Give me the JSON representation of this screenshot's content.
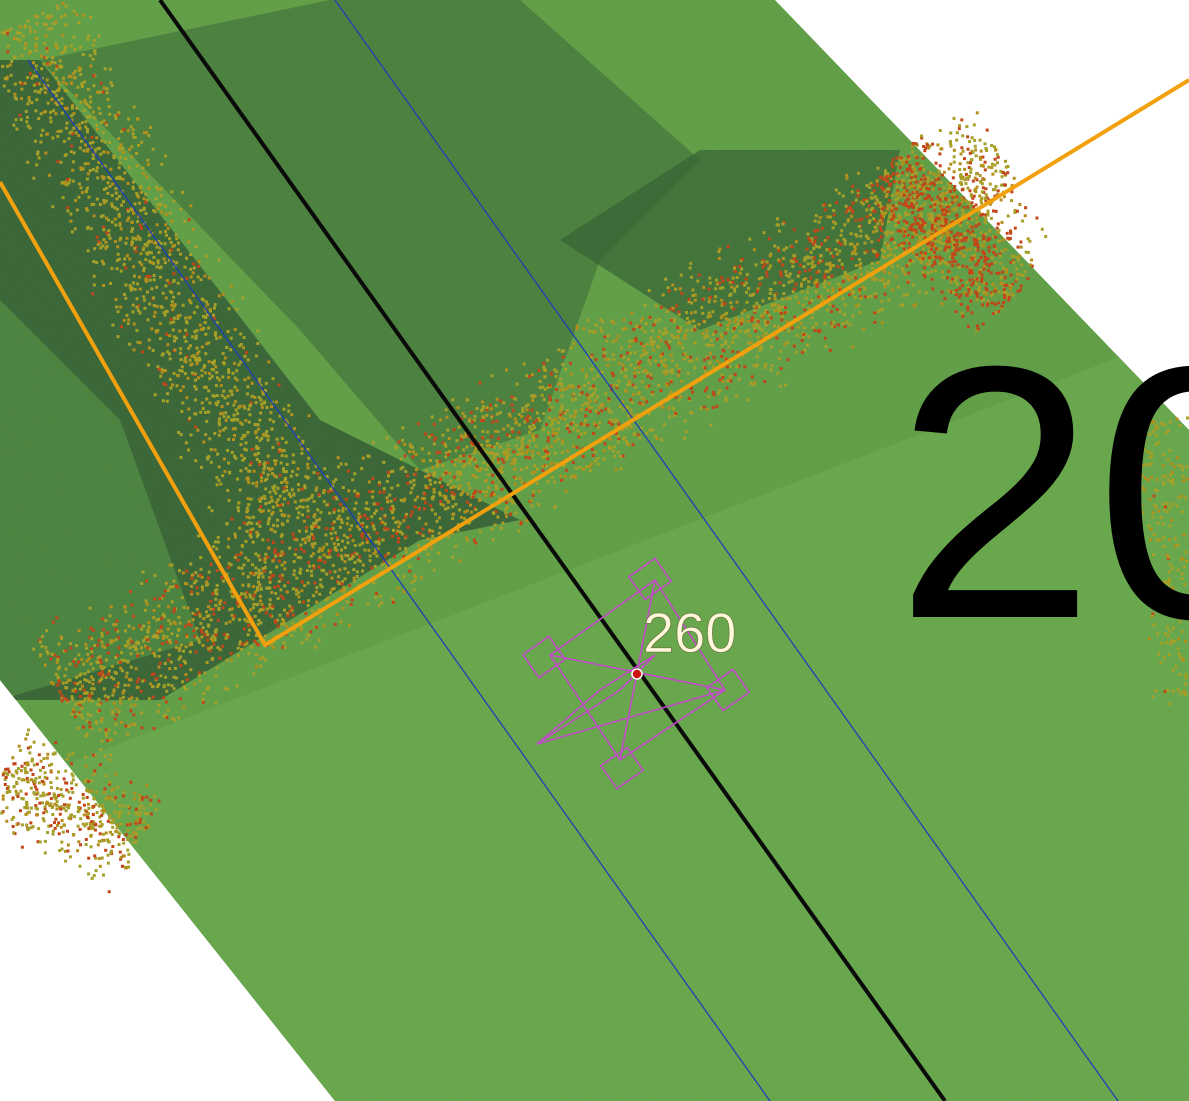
{
  "map": {
    "tower_label": "260",
    "large_label": "20"
  },
  "colors": {
    "background": "#ffffff",
    "ortho_green": "#5e9e42",
    "ortho_dark": "#2f5a30",
    "centerline": "#0a0a0a",
    "corridor_edge": "#1f3fb5",
    "parcel_boundary": "#f2a10e",
    "vegetation_low": "#a6a028",
    "vegetation_mid": "#b58f1c",
    "vegetation_high": "#c2461a",
    "tower_symbol": "#c24bc9",
    "tower_marker": "#cc1111",
    "tower_label": "#fff8dc",
    "large_label": "#000000"
  },
  "layers": [
    "orthophoto",
    "vegetation-point-cloud",
    "corridor-centerline",
    "corridor-boundary",
    "parcel-boundary",
    "transmission-tower",
    "tower-number-label"
  ]
}
